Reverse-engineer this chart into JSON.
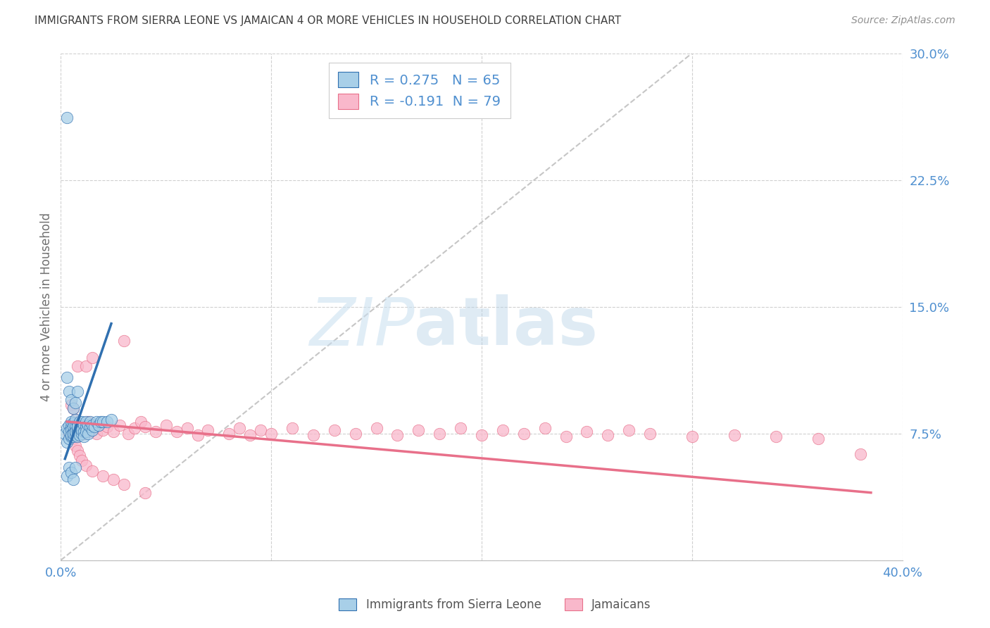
{
  "title": "IMMIGRANTS FROM SIERRA LEONE VS JAMAICAN 4 OR MORE VEHICLES IN HOUSEHOLD CORRELATION CHART",
  "source": "Source: ZipAtlas.com",
  "ylabel": "4 or more Vehicles in Household",
  "legend_label1": "Immigrants from Sierra Leone",
  "legend_label2": "Jamaicans",
  "R1": 0.275,
  "N1": 65,
  "R2": -0.191,
  "N2": 79,
  "color1": "#a8cfe8",
  "color2": "#f9b8cb",
  "trendline1_color": "#3070b0",
  "trendline2_color": "#e8708a",
  "diag_color": "#c0c0c0",
  "axis_tick_color": "#5090d0",
  "ylabel_color": "#707070",
  "title_color": "#404040",
  "source_color": "#909090",
  "xlim": [
    0.0,
    0.4
  ],
  "ylim": [
    0.0,
    0.3
  ],
  "xticks": [
    0.0,
    0.4
  ],
  "xtick_labels": [
    "0.0%",
    "40.0%"
  ],
  "yticks_right": [
    0.075,
    0.15,
    0.225,
    0.3
  ],
  "ytick_labels_right": [
    "7.5%",
    "15.0%",
    "22.5%",
    "30.0%"
  ],
  "watermark_zip": "ZIP",
  "watermark_atlas": "atlas",
  "background_color": "#ffffff",
  "grid_color": "#d0d0d0",
  "sl_x": [
    0.002,
    0.003,
    0.003,
    0.004,
    0.004,
    0.004,
    0.005,
    0.005,
    0.005,
    0.005,
    0.005,
    0.006,
    0.006,
    0.006,
    0.006,
    0.006,
    0.007,
    0.007,
    0.007,
    0.007,
    0.007,
    0.008,
    0.008,
    0.008,
    0.008,
    0.008,
    0.009,
    0.009,
    0.009,
    0.009,
    0.01,
    0.01,
    0.01,
    0.01,
    0.011,
    0.011,
    0.011,
    0.012,
    0.012,
    0.012,
    0.013,
    0.013,
    0.014,
    0.014,
    0.015,
    0.015,
    0.016,
    0.017,
    0.018,
    0.019,
    0.02,
    0.022,
    0.024,
    0.003,
    0.004,
    0.005,
    0.006,
    0.007,
    0.008,
    0.004,
    0.003,
    0.005,
    0.006,
    0.007,
    0.003
  ],
  "sl_y": [
    0.075,
    0.07,
    0.078,
    0.072,
    0.08,
    0.076,
    0.073,
    0.079,
    0.082,
    0.077,
    0.074,
    0.076,
    0.081,
    0.073,
    0.079,
    0.075,
    0.078,
    0.074,
    0.08,
    0.076,
    0.083,
    0.077,
    0.08,
    0.075,
    0.073,
    0.079,
    0.076,
    0.082,
    0.078,
    0.074,
    0.079,
    0.075,
    0.082,
    0.077,
    0.08,
    0.076,
    0.073,
    0.079,
    0.082,
    0.076,
    0.08,
    0.075,
    0.079,
    0.082,
    0.077,
    0.08,
    0.079,
    0.082,
    0.08,
    0.082,
    0.082,
    0.082,
    0.083,
    0.108,
    0.1,
    0.095,
    0.09,
    0.093,
    0.1,
    0.055,
    0.05,
    0.052,
    0.048,
    0.055,
    0.262
  ],
  "ja_x": [
    0.004,
    0.005,
    0.005,
    0.006,
    0.006,
    0.007,
    0.007,
    0.008,
    0.008,
    0.009,
    0.009,
    0.01,
    0.01,
    0.011,
    0.012,
    0.013,
    0.014,
    0.015,
    0.016,
    0.017,
    0.018,
    0.02,
    0.022,
    0.025,
    0.028,
    0.03,
    0.032,
    0.035,
    0.038,
    0.04,
    0.045,
    0.05,
    0.055,
    0.06,
    0.065,
    0.07,
    0.08,
    0.085,
    0.09,
    0.095,
    0.1,
    0.11,
    0.12,
    0.13,
    0.14,
    0.15,
    0.16,
    0.17,
    0.18,
    0.19,
    0.2,
    0.21,
    0.22,
    0.23,
    0.24,
    0.25,
    0.26,
    0.27,
    0.28,
    0.3,
    0.32,
    0.34,
    0.36,
    0.38,
    0.007,
    0.008,
    0.009,
    0.01,
    0.012,
    0.015,
    0.02,
    0.025,
    0.03,
    0.04,
    0.005,
    0.006,
    0.008,
    0.012,
    0.015
  ],
  "ja_y": [
    0.075,
    0.08,
    0.074,
    0.079,
    0.072,
    0.077,
    0.083,
    0.076,
    0.08,
    0.074,
    0.079,
    0.077,
    0.08,
    0.075,
    0.079,
    0.082,
    0.076,
    0.08,
    0.078,
    0.075,
    0.08,
    0.077,
    0.079,
    0.076,
    0.08,
    0.13,
    0.075,
    0.078,
    0.082,
    0.079,
    0.076,
    0.08,
    0.076,
    0.078,
    0.074,
    0.077,
    0.075,
    0.078,
    0.074,
    0.077,
    0.075,
    0.078,
    0.074,
    0.077,
    0.075,
    0.078,
    0.074,
    0.077,
    0.075,
    0.078,
    0.074,
    0.077,
    0.075,
    0.078,
    0.073,
    0.076,
    0.074,
    0.077,
    0.075,
    0.073,
    0.074,
    0.073,
    0.072,
    0.063,
    0.068,
    0.065,
    0.062,
    0.059,
    0.056,
    0.053,
    0.05,
    0.048,
    0.045,
    0.04,
    0.092,
    0.09,
    0.115,
    0.115,
    0.12
  ],
  "sl_trend_x0": 0.002,
  "sl_trend_x1": 0.024,
  "sl_trend_y0": 0.06,
  "sl_trend_y1": 0.14,
  "ja_trend_x0": 0.003,
  "ja_trend_x1": 0.385,
  "ja_trend_y0": 0.082,
  "ja_trend_y1": 0.04
}
